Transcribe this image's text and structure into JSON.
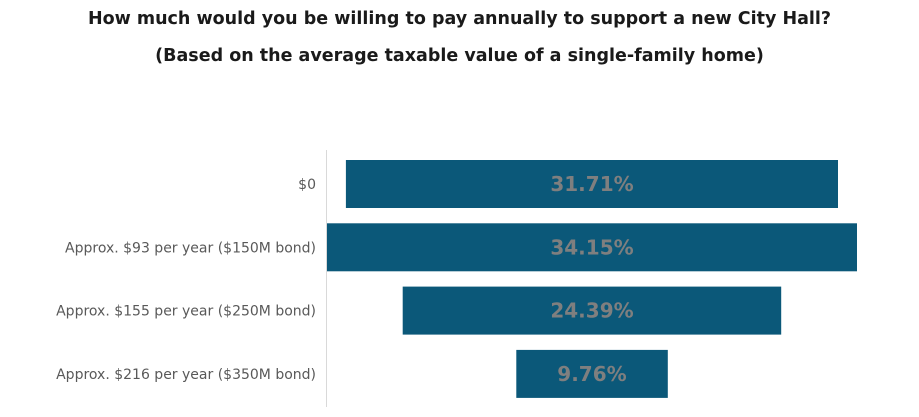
{
  "chart_data": {
    "type": "bar",
    "orientation": "horizontal",
    "layout": "funnel-centered",
    "title": "How much would you be willing to pay annually to support a new City Hall?",
    "subtitle": "(Based on the average taxable value of a single-family home)",
    "categories": [
      "$0",
      "Approx.  $93 per year ($150M bond)",
      "Approx. $155 per year ($250M bond)",
      "Approx. $216 per year ($350M bond)"
    ],
    "values": [
      31.71,
      34.15,
      24.39,
      9.76
    ],
    "data_labels": [
      "31.71%",
      "34.15%",
      "24.39%",
      "9.76%"
    ],
    "bar_color": "#0b5879",
    "label_color": "#7f7f7f",
    "grid": false,
    "legend": "none"
  }
}
